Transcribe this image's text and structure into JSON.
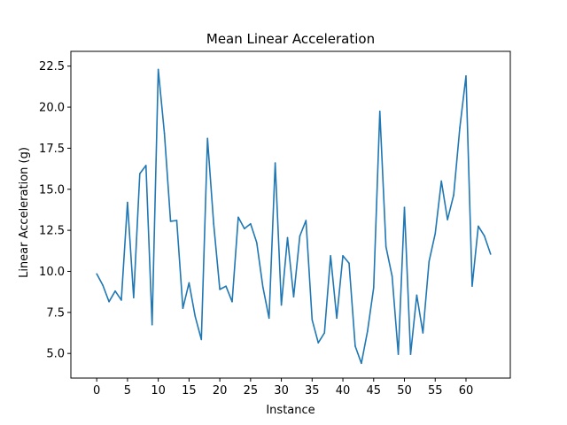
{
  "chart_data": {
    "type": "line",
    "title": "Mean Linear Acceleration",
    "xlabel": "Instance",
    "ylabel": "Linear Acceleration (g)",
    "xlim": [
      -4.2,
      67.2
    ],
    "ylim": [
      3.5,
      23.4
    ],
    "xticks": [
      0,
      5,
      10,
      15,
      20,
      25,
      30,
      35,
      40,
      45,
      50,
      55,
      60
    ],
    "xtick_labels": [
      "0",
      "5",
      "10",
      "15",
      "20",
      "25",
      "30",
      "35",
      "40",
      "45",
      "50",
      "55",
      "60"
    ],
    "yticks": [
      5.0,
      7.5,
      10.0,
      12.5,
      15.0,
      17.5,
      20.0,
      22.5
    ],
    "ytick_labels": [
      "5.0",
      "7.5",
      "10.0",
      "12.5",
      "15.0",
      "17.5",
      "20.0",
      "22.5"
    ],
    "grid": false,
    "series": [
      {
        "color": "#1f77b4",
        "x": [
          0,
          1,
          2,
          3,
          4,
          5,
          6,
          7,
          8,
          9,
          10,
          11,
          12,
          13,
          14,
          15,
          16,
          17,
          18,
          19,
          20,
          21,
          22,
          23,
          24,
          25,
          26,
          27,
          28,
          29,
          30,
          31,
          32,
          33,
          34,
          35,
          36,
          37,
          38,
          39,
          40,
          41,
          42,
          43,
          44,
          45,
          46,
          47,
          48,
          49,
          50,
          51,
          52,
          53,
          54,
          55,
          56,
          57,
          58,
          59,
          60,
          61,
          62,
          63,
          64
        ],
        "y": [
          9.85,
          9.15,
          8.15,
          8.8,
          8.25,
          14.2,
          8.4,
          15.95,
          16.45,
          6.75,
          22.3,
          18.4,
          13.05,
          13.1,
          7.75,
          9.3,
          7.25,
          5.85,
          18.1,
          12.9,
          8.9,
          9.1,
          8.15,
          13.3,
          12.6,
          12.9,
          11.75,
          9.05,
          7.15,
          16.6,
          7.95,
          12.05,
          8.45,
          12.15,
          13.1,
          7.05,
          5.65,
          6.25,
          10.95,
          7.15,
          10.95,
          10.5,
          5.45,
          4.4,
          6.35,
          9.0,
          19.75,
          11.5,
          9.7,
          4.95,
          13.9,
          4.95,
          8.55,
          6.25,
          10.6,
          12.3,
          15.5,
          13.15,
          14.65,
          18.75,
          21.9,
          9.1,
          12.75,
          12.15,
          11.05
        ]
      }
    ]
  }
}
